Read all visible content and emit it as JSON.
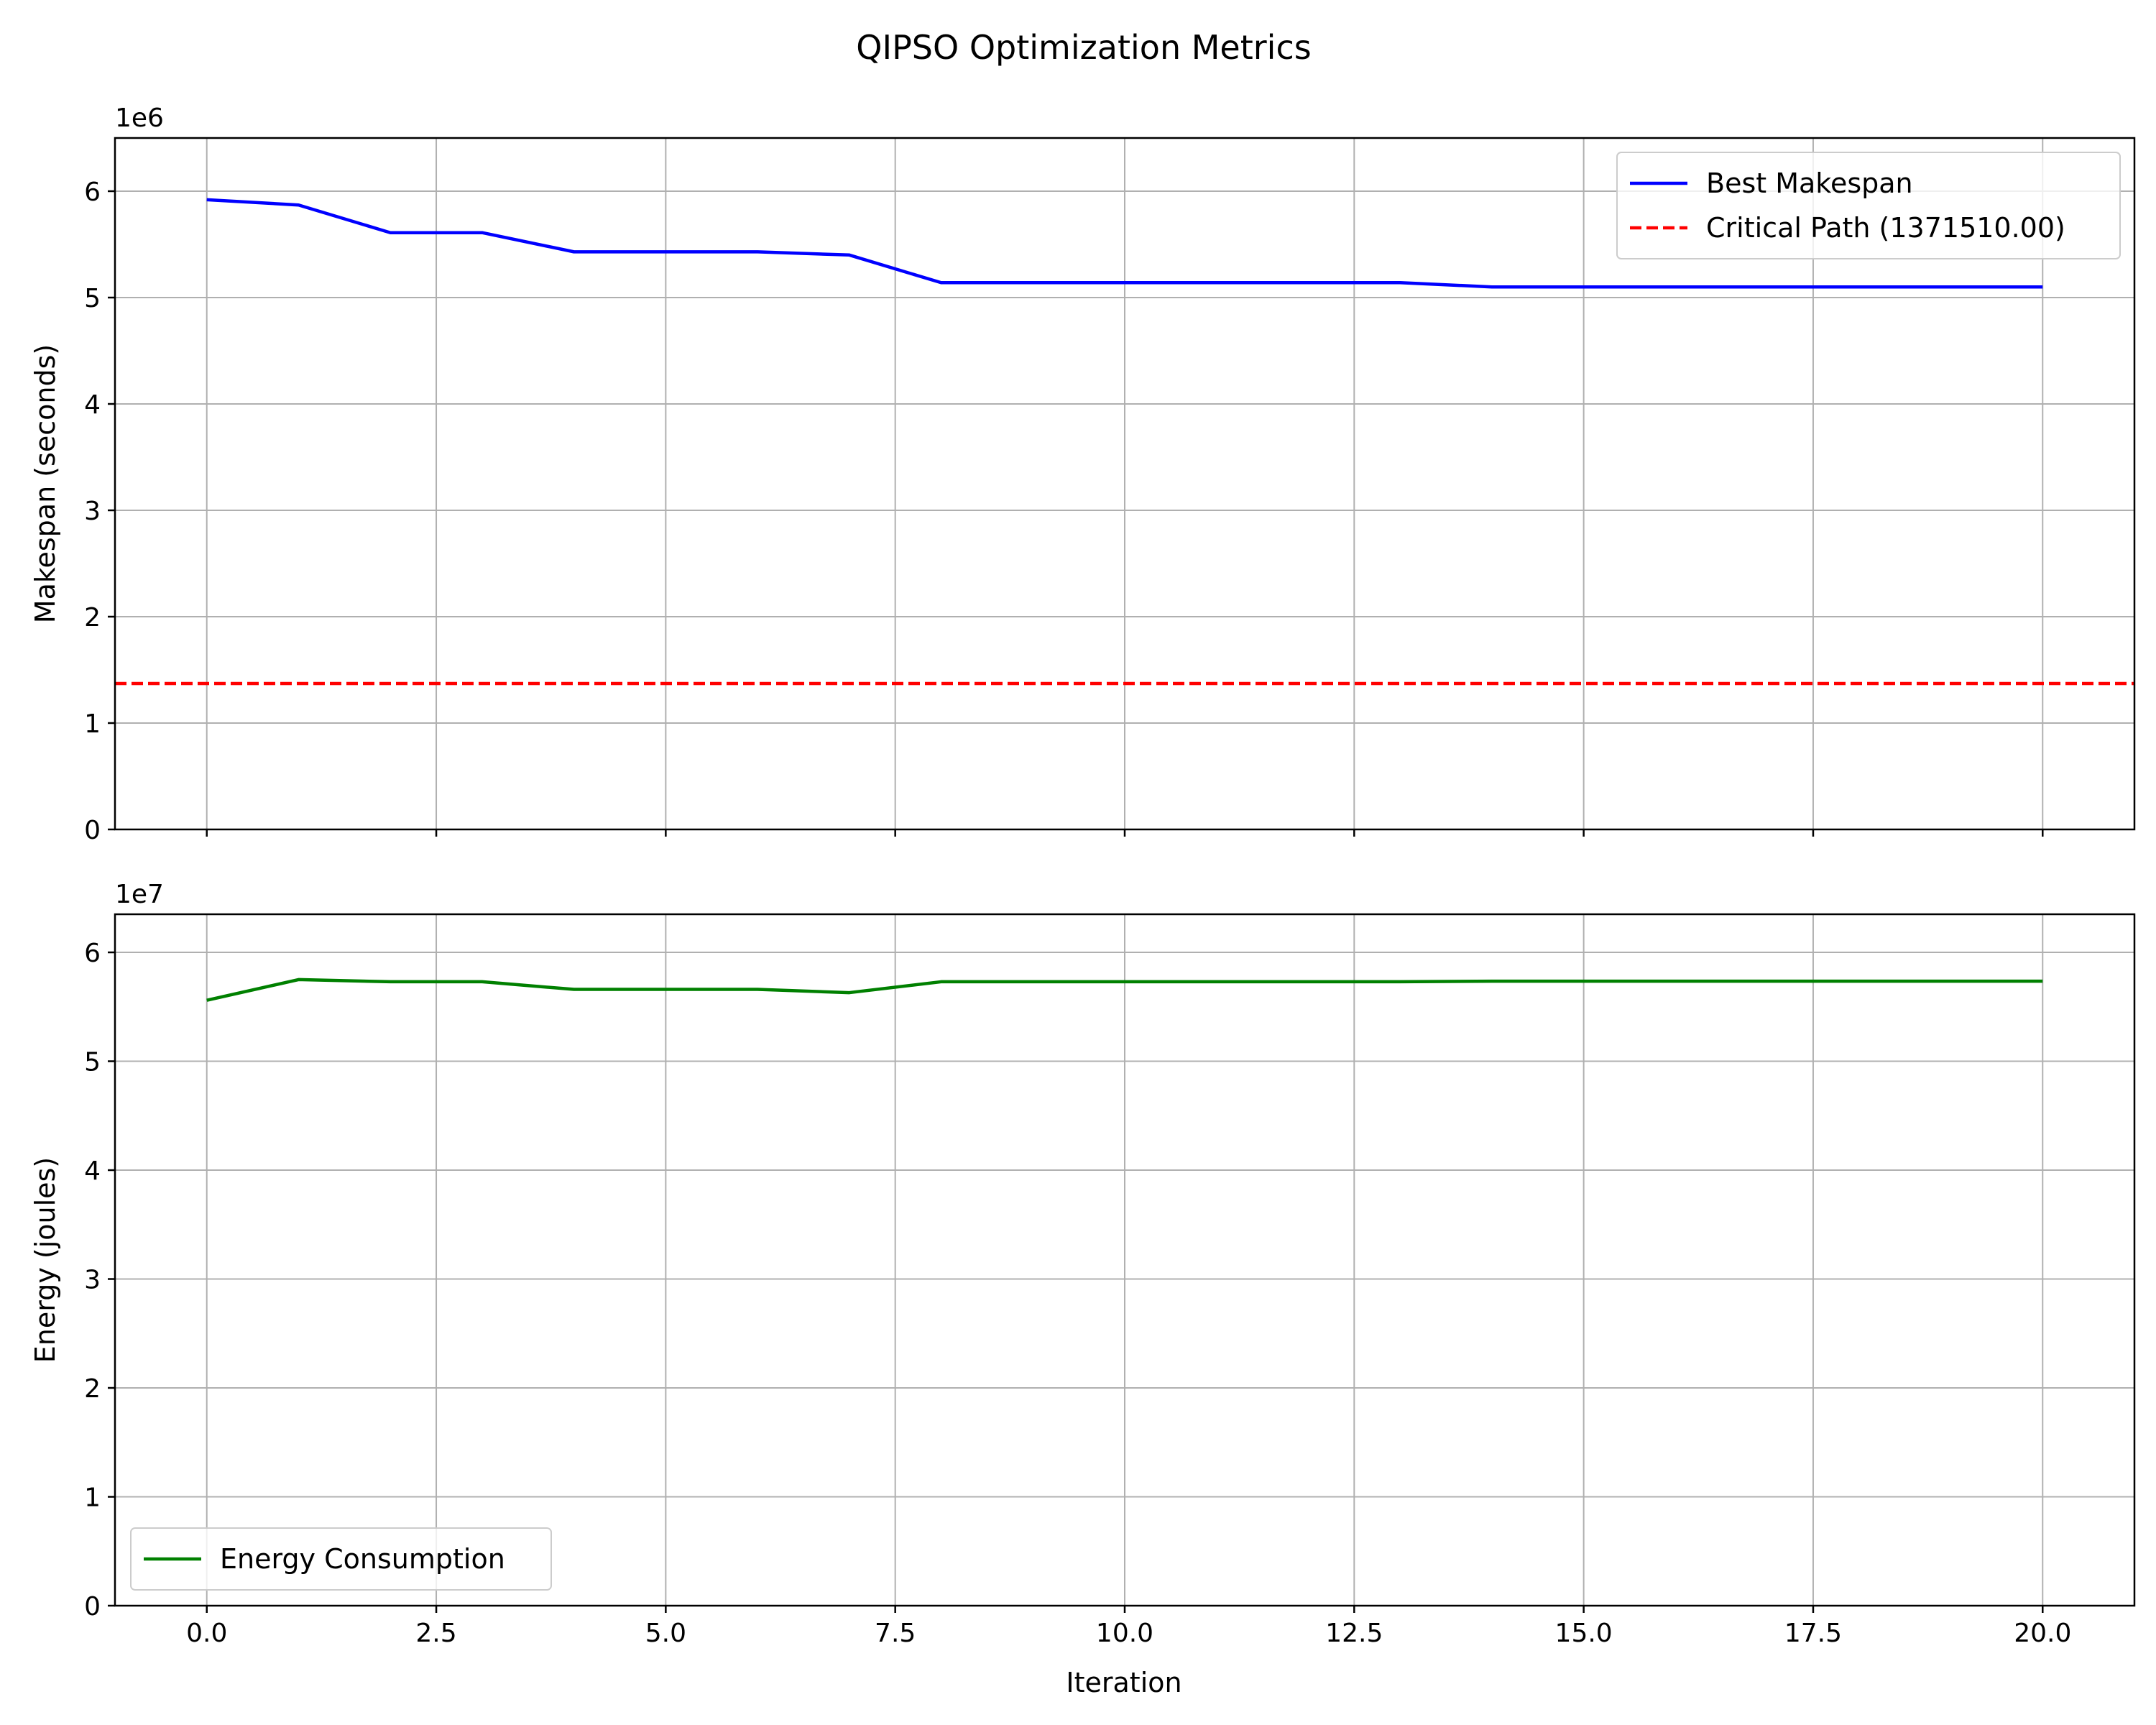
{
  "chart_data": {
    "title": "QIPSO Optimization Metrics",
    "type": "line",
    "xlim": [
      -1,
      21
    ],
    "xticks": [
      0.0,
      2.5,
      5.0,
      7.5,
      10.0,
      12.5,
      15.0,
      17.5,
      20.0
    ],
    "xtick_labels": [
      "0.0",
      "2.5",
      "5.0",
      "7.5",
      "10.0",
      "12.5",
      "15.0",
      "17.5",
      "20.0"
    ],
    "xlabel": "Iteration",
    "grid": true,
    "panels": [
      {
        "ylabel": "Makespan (seconds)",
        "offset_text": "1e6",
        "ylim": [
          0,
          6500000
        ],
        "yticks": [
          0,
          1000000,
          2000000,
          3000000,
          4000000,
          5000000,
          6000000
        ],
        "ytick_labels": [
          "0",
          "1",
          "2",
          "3",
          "4",
          "5",
          "6"
        ],
        "legend_position": "upper right",
        "show_xtick_labels": false,
        "series": [
          {
            "name": "Best Makespan",
            "color": "#0000ff",
            "style": "solid",
            "x": [
              0,
              1,
              2,
              3,
              4,
              5,
              6,
              7,
              8,
              9,
              10,
              11,
              12,
              13,
              14,
              15,
              16,
              17,
              18,
              19,
              20
            ],
            "y": [
              5920000,
              5870000,
              5610000,
              5610000,
              5430000,
              5430000,
              5430000,
              5400000,
              5140000,
              5140000,
              5140000,
              5140000,
              5140000,
              5140000,
              5100000,
              5100000,
              5100000,
              5100000,
              5100000,
              5100000,
              5100000
            ]
          },
          {
            "name": "Critical Path (1371510.00)",
            "color": "#ff0000",
            "style": "dashed",
            "hline": 1371510.0
          }
        ]
      },
      {
        "ylabel": "Energy (joules)",
        "offset_text": "1e7",
        "ylim": [
          0,
          63500000
        ],
        "yticks": [
          0,
          10000000,
          20000000,
          30000000,
          40000000,
          50000000,
          60000000
        ],
        "ytick_labels": [
          "0",
          "1",
          "2",
          "3",
          "4",
          "5",
          "6"
        ],
        "legend_position": "lower left",
        "show_xtick_labels": true,
        "series": [
          {
            "name": "Energy Consumption",
            "color": "#008000",
            "style": "solid",
            "x": [
              0,
              1,
              2,
              3,
              4,
              5,
              6,
              7,
              8,
              9,
              10,
              11,
              12,
              13,
              14,
              15,
              16,
              17,
              18,
              19,
              20
            ],
            "y": [
              55600000,
              57500000,
              57300000,
              57300000,
              56600000,
              56600000,
              56600000,
              56300000,
              57300000,
              57300000,
              57300000,
              57300000,
              57300000,
              57300000,
              57350000,
              57350000,
              57350000,
              57350000,
              57350000,
              57350000,
              57350000
            ]
          }
        ]
      }
    ]
  }
}
